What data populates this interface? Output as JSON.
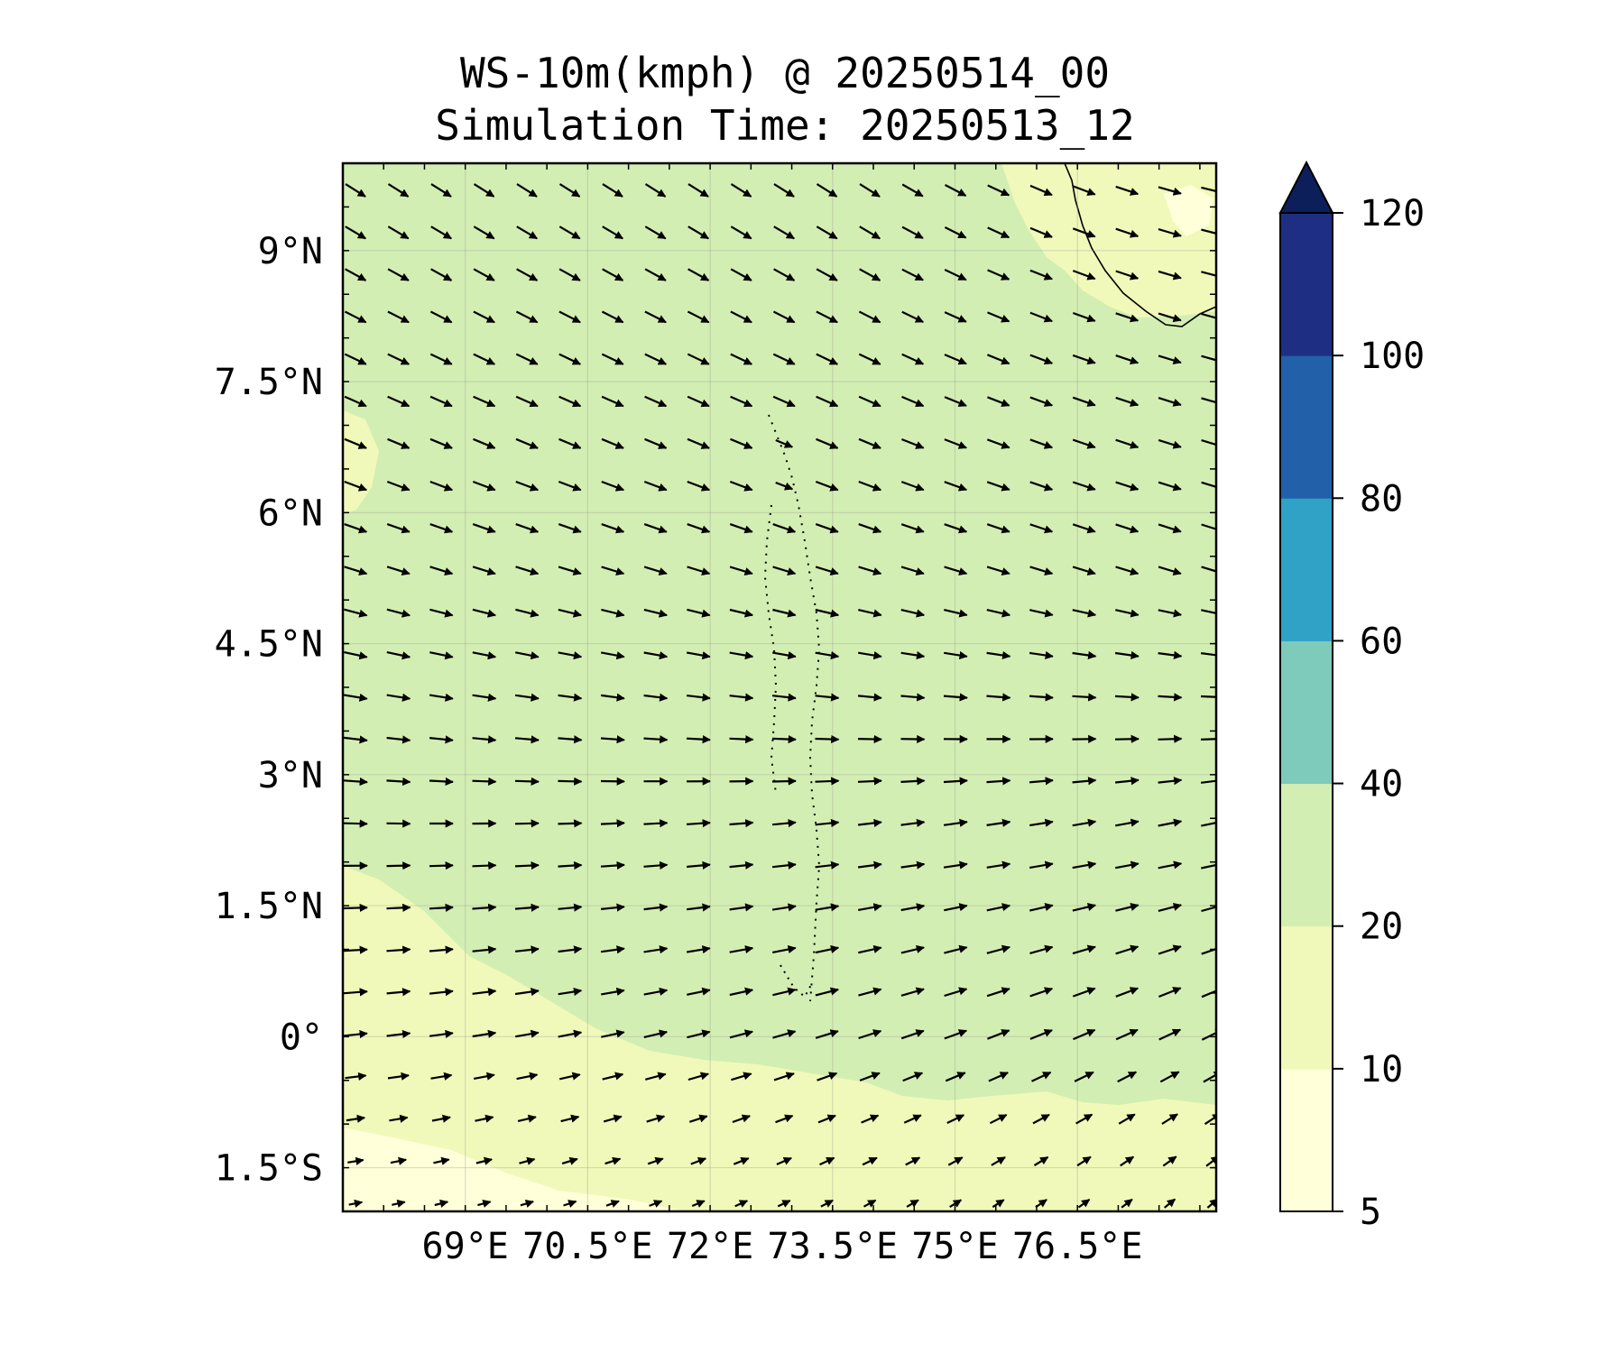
{
  "title": "WS-10m(kmph) @ 20250514_00",
  "subtitle": "Simulation Time: 20250513_12",
  "map": {
    "lon_range": [
      67.5,
      78.2
    ],
    "lat_range": [
      -2.0,
      10.0
    ],
    "lon_ticks": [
      {
        "value": 69.0,
        "label": "69°E"
      },
      {
        "value": 70.5,
        "label": "70.5°E"
      },
      {
        "value": 72.0,
        "label": "72°E"
      },
      {
        "value": 73.5,
        "label": "73.5°E"
      },
      {
        "value": 75.0,
        "label": "75°E"
      },
      {
        "value": 76.5,
        "label": "76.5°E"
      }
    ],
    "lat_ticks": [
      {
        "value": 9.0,
        "label": "9°N"
      },
      {
        "value": 7.5,
        "label": "7.5°N"
      },
      {
        "value": 6.0,
        "label": "6°N"
      },
      {
        "value": 4.5,
        "label": "4.5°N"
      },
      {
        "value": 3.0,
        "label": "3°N"
      },
      {
        "value": 1.5,
        "label": "1.5°N"
      },
      {
        "value": 0.0,
        "label": "0°"
      },
      {
        "value": -1.5,
        "label": "1.5°S"
      }
    ],
    "grid": true
  },
  "colorbar": {
    "levels": [
      {
        "label": "5",
        "value": 5,
        "color": "#ffffd9"
      },
      {
        "label": "10",
        "value": 10,
        "color": "#f0f9b9"
      },
      {
        "label": "20",
        "value": 20,
        "color": "#d3eeb3"
      },
      {
        "label": "40",
        "value": 40,
        "color": "#7ecbbb"
      },
      {
        "label": "60",
        "value": 60,
        "color": "#2fa2c5"
      },
      {
        "label": "80",
        "value": 80,
        "color": "#2261a9"
      },
      {
        "label": "100",
        "value": 100,
        "color": "#1d2e83"
      },
      {
        "label": "120",
        "value": 120,
        "color": "#0d1f5a"
      }
    ],
    "extend": "max"
  },
  "colors": {
    "field_main": "#d3eeb3",
    "field_light": "#f0f9b9",
    "field_lightest": "#ffffd9"
  }
}
